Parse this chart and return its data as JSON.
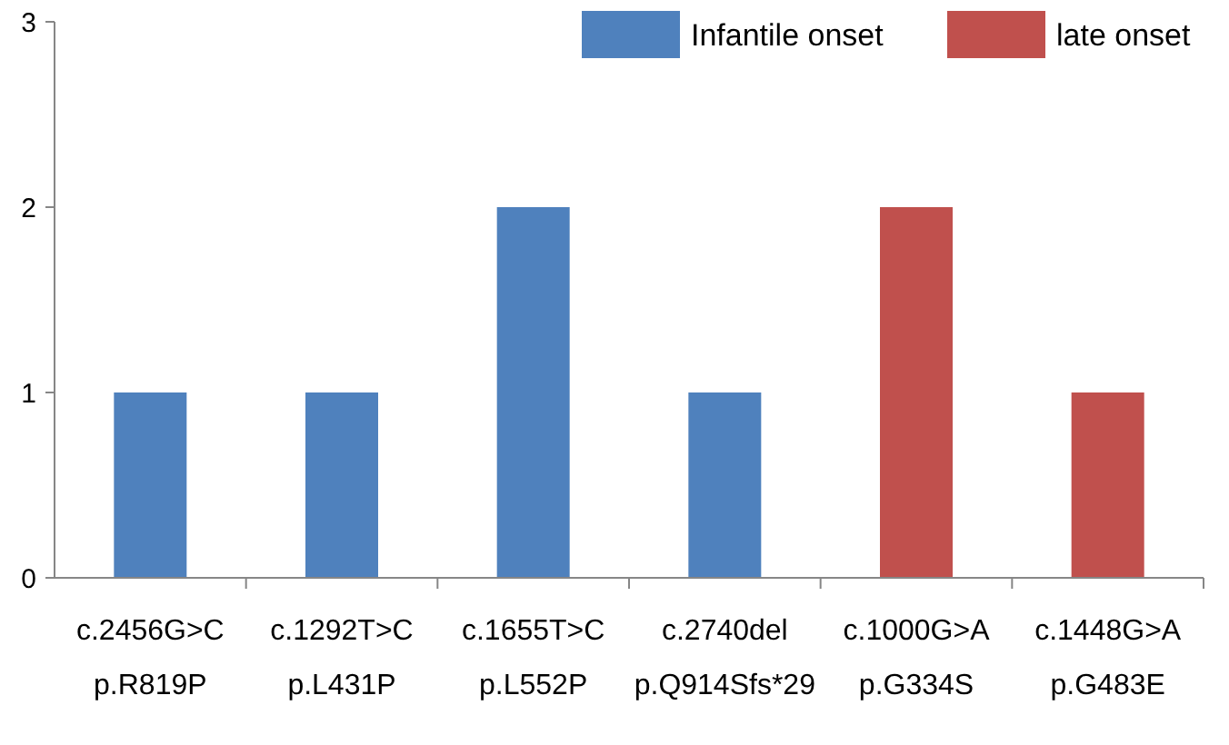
{
  "chart_data": {
    "type": "bar",
    "categories": [
      "c.2456G>C\np.R819P",
      "c.1292T>C\np.L431P",
      "c.1655T>C\np.L552P",
      "c.2740del\np.Q914Sfs*29",
      "c.1000G>A\np.G334S",
      "c.1448G>A\np.G483E"
    ],
    "series": [
      {
        "name": "Infantile onset",
        "color": "#4f81bd",
        "values": [
          1,
          1,
          2,
          1,
          null,
          null
        ]
      },
      {
        "name": "late onset",
        "color": "#c0504d",
        "values": [
          null,
          null,
          null,
          null,
          2,
          1
        ]
      }
    ],
    "ylim": [
      0,
      3
    ],
    "yticks": [
      0,
      1,
      2,
      3
    ],
    "grid": false,
    "legend": "top"
  }
}
